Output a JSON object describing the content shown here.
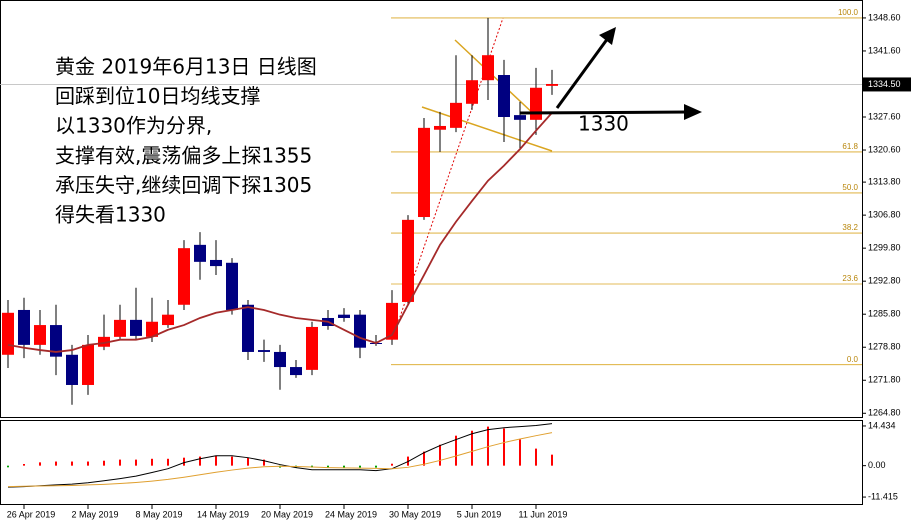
{
  "chart_data": [
    {
      "type": "candlestick",
      "categories": [
        null,
        "26 Apr 2019",
        null,
        null,
        null,
        "2 May 2019",
        null,
        null,
        null,
        "8 May 2019",
        null,
        null,
        null,
        "14 May 2019",
        null,
        null,
        null,
        "20 May 2019",
        null,
        null,
        null,
        "24 May 2019",
        null,
        null,
        null,
        "30 May 2019",
        null,
        null,
        null,
        "5 Jun 2019",
        null,
        null,
        null,
        "11 Jun 2019",
        null
      ],
      "open": [
        1277.2,
        1286.7,
        1279.3,
        1283.5,
        1277.2,
        1270.8,
        1278.9,
        1281.0,
        1284.6,
        1281.0,
        1283.5,
        1287.8,
        1300.5,
        1297.3,
        1296.7,
        1287.8,
        1278.2,
        1277.8,
        1274.6,
        1274.0,
        1285.0,
        1285.7,
        1285.7,
        1279.7,
        1280.4,
        1288.4,
        1306.4,
        1324.9,
        1325.3,
        1330.4,
        1335.4,
        1336.5,
        1328.0,
        1327.0,
        1334.2
      ],
      "high": [
        1288.8,
        1289.3,
        1286.7,
        1287.8,
        1279.3,
        1281.4,
        1285.7,
        1287.8,
        1291.4,
        1289.3,
        1288.8,
        1301.5,
        1303.2,
        1301.5,
        1297.7,
        1288.8,
        1280.4,
        1279.3,
        1276.1,
        1284.2,
        1286.7,
        1287.1,
        1286.7,
        1281.4,
        1290.9,
        1306.8,
        1327.4,
        1328.7,
        1340.7,
        1340.7,
        1348.6,
        1339.7,
        1330.8,
        1338.0,
        1337.6
      ],
      "low": [
        1274.4,
        1276.5,
        1277.2,
        1272.9,
        1266.6,
        1268.7,
        1278.2,
        1280.4,
        1280.4,
        1279.9,
        1282.9,
        1286.7,
        1293.1,
        1294.1,
        1285.7,
        1276.1,
        1275.7,
        1269.8,
        1272.3,
        1272.9,
        1282.5,
        1284.2,
        1276.5,
        1279.1,
        1279.3,
        1287.8,
        1305.8,
        1320.2,
        1324.4,
        1329.1,
        1331.2,
        1322.3,
        1320.6,
        1323.8,
        1332.3
      ],
      "close": [
        1286.1,
        1279.3,
        1283.5,
        1276.8,
        1270.8,
        1279.3,
        1281.0,
        1284.6,
        1281.2,
        1284.2,
        1285.7,
        1299.8,
        1296.9,
        1296.0,
        1286.7,
        1277.8,
        1277.8,
        1274.6,
        1272.9,
        1283.1,
        1283.3,
        1285.0,
        1278.7,
        1279.5,
        1288.2,
        1305.8,
        1325.3,
        1325.7,
        1330.6,
        1335.4,
        1340.7,
        1327.6,
        1327.0,
        1333.8,
        1334.6
      ],
      "up_color": "#ff0000",
      "down_color": "#000080",
      "ma": {
        "color": "#a52a2a",
        "values": [
          1279.3,
          1278.7,
          1278.2,
          1277.8,
          1278.2,
          1279.3,
          1279.7,
          1280.4,
          1280.4,
          1281.0,
          1282.5,
          1283.5,
          1285.0,
          1286.1,
          1286.7,
          1287.3,
          1286.7,
          1285.7,
          1285.0,
          1284.6,
          1284.2,
          1282.5,
          1280.8,
          1279.7,
          1281.4,
          1287.8,
          1294.1,
          1300.5,
          1305.4,
          1309.8,
          1314.1,
          1317.3,
          1320.8,
          1324.7,
          1328.5
        ]
      },
      "ylim": [
        1263.8,
        1352.4
      ],
      "yticks": [
        {
          "value": 1348.6,
          "label": "1348.60"
        },
        {
          "value": 1341.6,
          "label": "1341.60"
        },
        {
          "value": 1327.6,
          "label": "1327.60"
        },
        {
          "value": 1320.6,
          "label": "1320.60"
        },
        {
          "value": 1313.8,
          "label": "1313.80"
        },
        {
          "value": 1306.8,
          "label": "1306.80"
        },
        {
          "value": 1299.8,
          "label": "1299.80"
        },
        {
          "value": 1292.8,
          "label": "1292.80"
        },
        {
          "value": 1285.8,
          "label": "1285.80"
        },
        {
          "value": 1278.8,
          "label": "1278.80"
        },
        {
          "value": 1271.8,
          "label": "1271.80"
        },
        {
          "value": 1264.8,
          "label": "1264.80"
        }
      ],
      "current_price": {
        "value": 1334.5,
        "label": "1334.50"
      },
      "fib_color": "#daa520",
      "fib_levels": [
        {
          "value": 1348.6,
          "label": "100.0"
        },
        {
          "value": 1320.2,
          "label": "61.8"
        },
        {
          "value": 1311.5,
          "label": "50.0"
        },
        {
          "value": 1303.0,
          "label": "38.2"
        },
        {
          "value": 1292.2,
          "label": "23.6"
        },
        {
          "value": 1275.1,
          "label": "0.0"
        }
      ],
      "annotation_lines": [
        "黄金 2019年6月13日 日线图",
        "回踩到位10日均线支撑",
        "以1330作为分界,",
        "支撑有效,震荡偏多上探1355",
        "承压失守,继续回调下探1305",
        "得失看1330"
      ],
      "annotation_level": "1330"
    },
    {
      "type": "macd",
      "histogram": {
        "up_color": "#ff0000",
        "down_color": "#00a000",
        "values": [
          -0.6,
          0.6,
          1.2,
          1.5,
          1.5,
          1.5,
          1.8,
          2.2,
          2.2,
          2.5,
          2.5,
          2.9,
          3.3,
          3.6,
          3.3,
          2.9,
          2.2,
          -0.7,
          -0.7,
          -0.7,
          -0.7,
          -0.7,
          -0.7,
          -0.7,
          0.7,
          3.3,
          5.1,
          7.6,
          10.9,
          12.7,
          14.2,
          13.5,
          9.5,
          6.2,
          4.0
        ]
      },
      "lines": [
        {
          "color": "#000000",
          "values": [
            -7.8,
            -7.6,
            -7.3,
            -7.0,
            -6.7,
            -6.2,
            -5.5,
            -4.7,
            -3.8,
            -2.5,
            -1.1,
            1.1,
            2.5,
            3.6,
            3.6,
            2.9,
            1.8,
            0.4,
            -0.7,
            -1.5,
            -1.5,
            -1.5,
            -1.5,
            -1.8,
            -1.1,
            1.5,
            4.7,
            7.3,
            9.5,
            11.6,
            13.1,
            13.8,
            14.2,
            14.6,
            15.3
          ]
        },
        {
          "color": "#e0a030",
          "values": [
            -7.6,
            -7.5,
            -7.4,
            -7.3,
            -7.2,
            -7.0,
            -6.8,
            -6.5,
            -6.1,
            -5.6,
            -5.0,
            -4.2,
            -3.3,
            -2.4,
            -1.6,
            -0.9,
            -0.4,
            -0.2,
            -0.3,
            -0.5,
            -0.7,
            -0.8,
            -0.9,
            -1.0,
            -1.1,
            -0.6,
            0.5,
            1.9,
            3.5,
            5.2,
            6.9,
            8.4,
            9.7,
            10.9,
            12.0
          ]
        }
      ],
      "ylim": [
        -14.3,
        16.6
      ],
      "yticks": [
        14.434,
        {
          "value": 0,
          "label": "0.00"
        },
        -11.415
      ]
    }
  ]
}
